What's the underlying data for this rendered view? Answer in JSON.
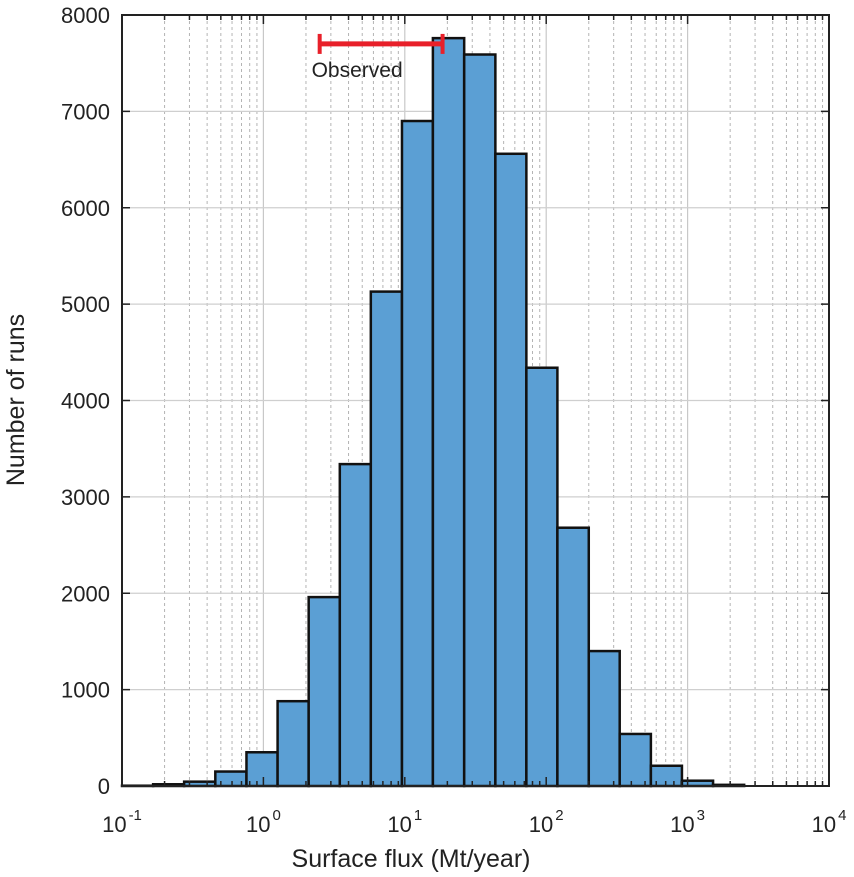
{
  "chart_data": {
    "type": "bar",
    "xlabel": "Surface flux (Mt/year)",
    "ylabel": "Number of runs",
    "x_scale": "log",
    "xlim": [
      0.1,
      10000
    ],
    "ylim": [
      0,
      8000
    ],
    "grid": true,
    "y_ticks": [
      "0",
      "1000",
      "2000",
      "3000",
      "4000",
      "5000",
      "6000",
      "7000",
      "8000"
    ],
    "y_tick_values": [
      0,
      1000,
      2000,
      3000,
      4000,
      5000,
      6000,
      7000,
      8000
    ],
    "x_ticks": [
      {
        "base": "10",
        "exp": "-1",
        "value": 0.1
      },
      {
        "base": "10",
        "exp": "0",
        "value": 1
      },
      {
        "base": "10",
        "exp": "1",
        "value": 10
      },
      {
        "base": "10",
        "exp": "2",
        "value": 100
      },
      {
        "base": "10",
        "exp": "3",
        "value": 1000
      },
      {
        "base": "10",
        "exp": "4",
        "value": 10000
      }
    ],
    "bin_edges": [
      0.1,
      0.166,
      0.275,
      0.457,
      0.759,
      1.26,
      2.09,
      3.47,
      5.75,
      9.55,
      15.8,
      26.3,
      43.7,
      72.4,
      120,
      200,
      331,
      550,
      912,
      1514,
      2512
    ],
    "counts": [
      3,
      18,
      45,
      150,
      350,
      880,
      1960,
      3340,
      5130,
      6900,
      7760,
      7590,
      6560,
      4340,
      2680,
      1400,
      540,
      210,
      55,
      12
    ],
    "bar_color": "#5b9fd4",
    "annotation": {
      "label": "Observed",
      "x_range": [
        2.5,
        18.5
      ],
      "y": 7700,
      "color": "#e8202a"
    }
  }
}
